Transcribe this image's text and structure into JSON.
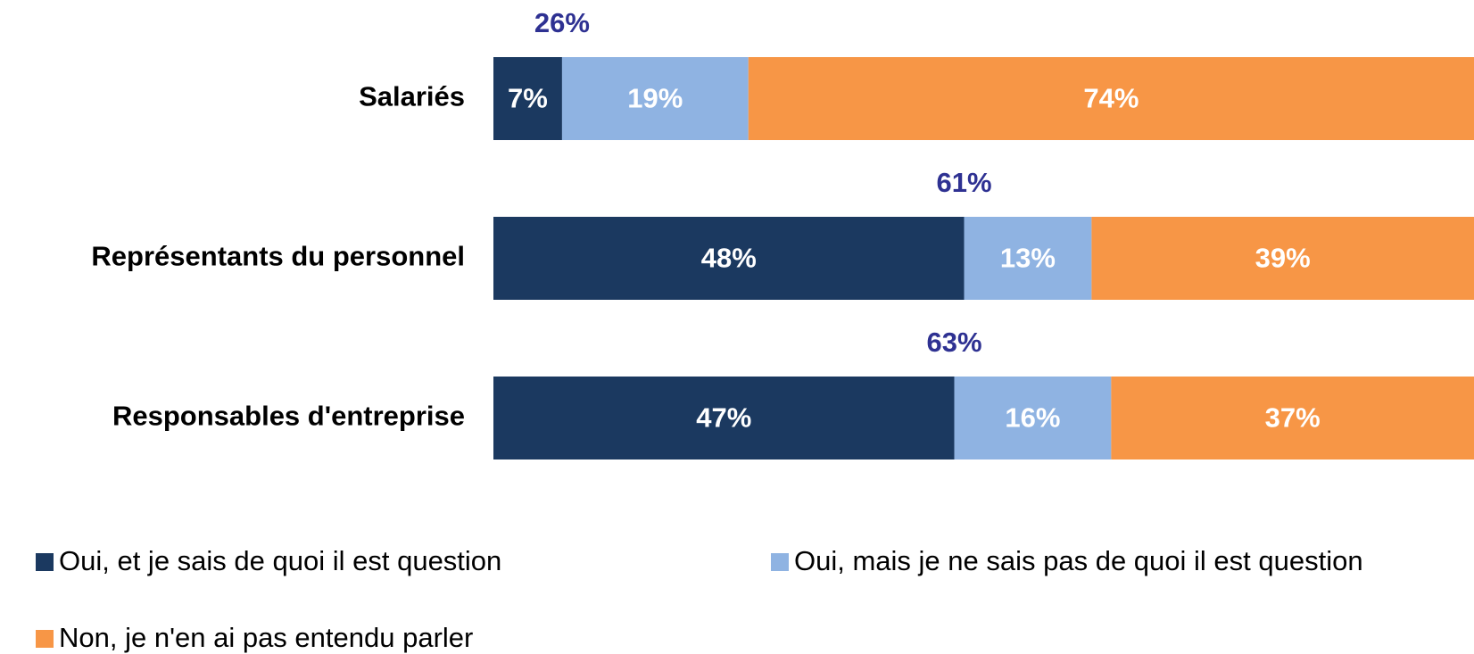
{
  "chart_data": {
    "type": "stacked-bar-horizontal",
    "categories": [
      "Salariés",
      "Représentants du personnel",
      "Responsables d'entreprise"
    ],
    "xlim": [
      0,
      100
    ],
    "series": [
      {
        "name": "Oui, et je sais de quoi il est question",
        "color": "#1b3960",
        "values": [
          7,
          48,
          47
        ],
        "value_labels": [
          "7%",
          "48%",
          "47%"
        ]
      },
      {
        "name": "Oui, mais je ne sais pas de quoi il est question",
        "color": "#8fb3e2",
        "values": [
          19,
          13,
          16
        ],
        "value_labels": [
          "19%",
          "13%",
          "16%"
        ]
      },
      {
        "name": "Non, je n'en ai pas entendu parler",
        "color": "#f79646",
        "values": [
          74,
          39,
          37
        ],
        "value_labels": [
          "74%",
          "39%",
          "37%"
        ]
      }
    ],
    "totals": {
      "color": "#2e3192",
      "values": [
        26,
        61,
        63
      ],
      "value_labels": [
        "26%",
        "61%",
        "63%"
      ]
    }
  }
}
